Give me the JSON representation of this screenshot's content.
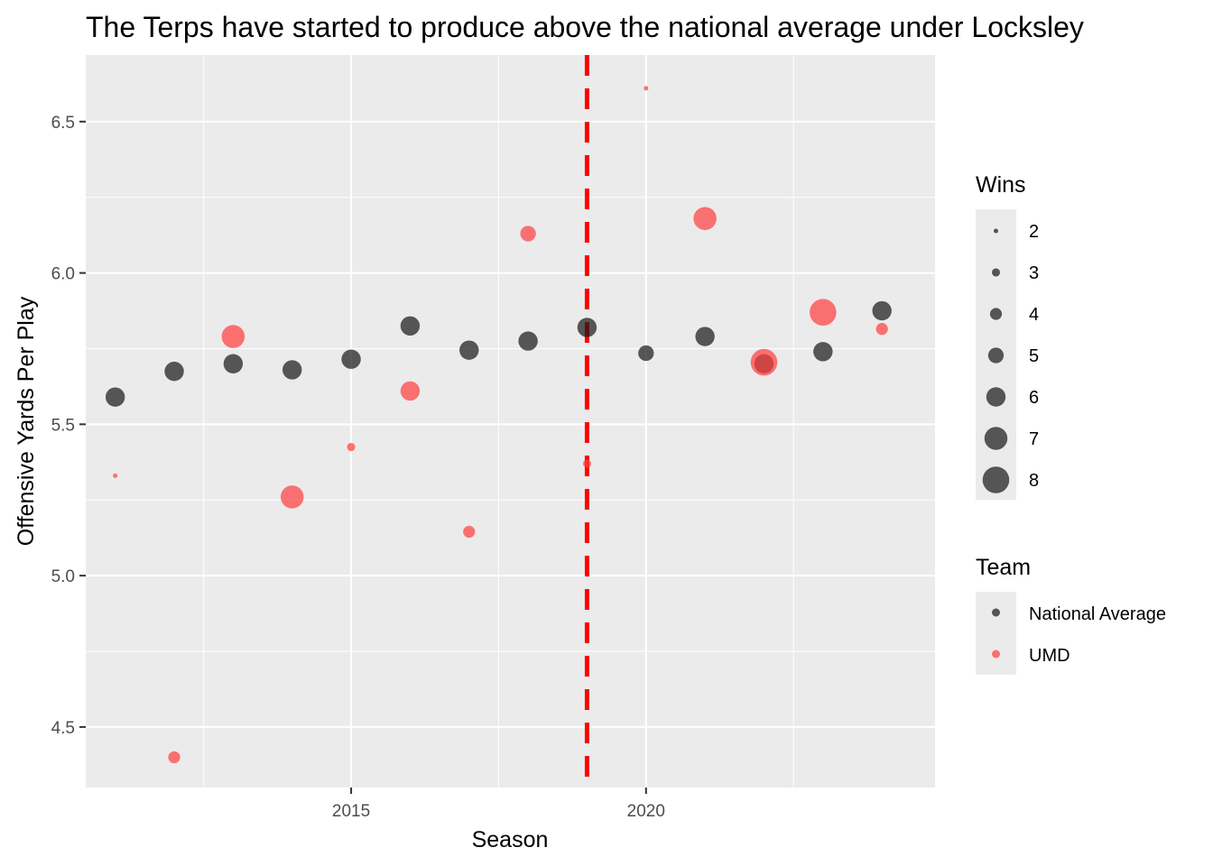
{
  "chart_data": {
    "type": "scatter",
    "title": "The Terps have started to produce above the national average under Locksley",
    "xlabel": "Season",
    "ylabel": "Offensive Yards Per Play",
    "xlim": [
      2010.5,
      2024.9
    ],
    "ylim": [
      4.3,
      6.72
    ],
    "x_ticks": [
      2015,
      2020
    ],
    "x_tick_labels": [
      "2015",
      "2020"
    ],
    "y_ticks": [
      4.5,
      5.0,
      5.5,
      6.0,
      6.5
    ],
    "y_tick_labels": [
      "4.5",
      "5.0",
      "5.5",
      "6.0",
      "6.5"
    ],
    "grid": true,
    "reference_line": {
      "x": 2019,
      "style": "dashed",
      "color": "#ff0000"
    },
    "series": [
      {
        "name": "National Average",
        "color": "#1a1a1a",
        "points": [
          {
            "x": 2011,
            "y": 5.59,
            "wins": 6
          },
          {
            "x": 2012,
            "y": 5.675,
            "wins": 6
          },
          {
            "x": 2013,
            "y": 5.7,
            "wins": 6
          },
          {
            "x": 2014,
            "y": 5.68,
            "wins": 6
          },
          {
            "x": 2015,
            "y": 5.715,
            "wins": 6
          },
          {
            "x": 2016,
            "y": 5.825,
            "wins": 6
          },
          {
            "x": 2017,
            "y": 5.745,
            "wins": 6
          },
          {
            "x": 2018,
            "y": 5.775,
            "wins": 6
          },
          {
            "x": 2019,
            "y": 5.82,
            "wins": 6
          },
          {
            "x": 2020,
            "y": 5.735,
            "wins": 5
          },
          {
            "x": 2021,
            "y": 5.79,
            "wins": 6
          },
          {
            "x": 2022,
            "y": 5.7,
            "wins": 6
          },
          {
            "x": 2023,
            "y": 5.74,
            "wins": 6
          },
          {
            "x": 2024,
            "y": 5.875,
            "wins": 6
          }
        ]
      },
      {
        "name": "UMD",
        "color": "#ff4040",
        "points": [
          {
            "x": 2011,
            "y": 5.33,
            "wins": 2
          },
          {
            "x": 2012,
            "y": 4.4,
            "wins": 4
          },
          {
            "x": 2013,
            "y": 5.79,
            "wins": 7
          },
          {
            "x": 2014,
            "y": 5.26,
            "wins": 7
          },
          {
            "x": 2015,
            "y": 5.425,
            "wins": 3
          },
          {
            "x": 2016,
            "y": 5.61,
            "wins": 6
          },
          {
            "x": 2017,
            "y": 5.145,
            "wins": 4
          },
          {
            "x": 2018,
            "y": 6.13,
            "wins": 5
          },
          {
            "x": 2019,
            "y": 5.37,
            "wins": 3
          },
          {
            "x": 2020,
            "y": 6.61,
            "wins": 2
          },
          {
            "x": 2021,
            "y": 6.18,
            "wins": 7
          },
          {
            "x": 2022,
            "y": 5.705,
            "wins": 8
          },
          {
            "x": 2023,
            "y": 5.87,
            "wins": 8
          },
          {
            "x": 2024,
            "y": 5.815,
            "wins": 4
          }
        ]
      }
    ],
    "legend": {
      "placement": "right",
      "size": {
        "title": "Wins",
        "values": [
          2,
          3,
          4,
          5,
          6,
          7,
          8
        ],
        "labels": [
          "2",
          "3",
          "4",
          "5",
          "6",
          "7",
          "8"
        ]
      },
      "color": {
        "title": "Team",
        "entries": [
          "National Average",
          "UMD"
        ]
      }
    }
  }
}
